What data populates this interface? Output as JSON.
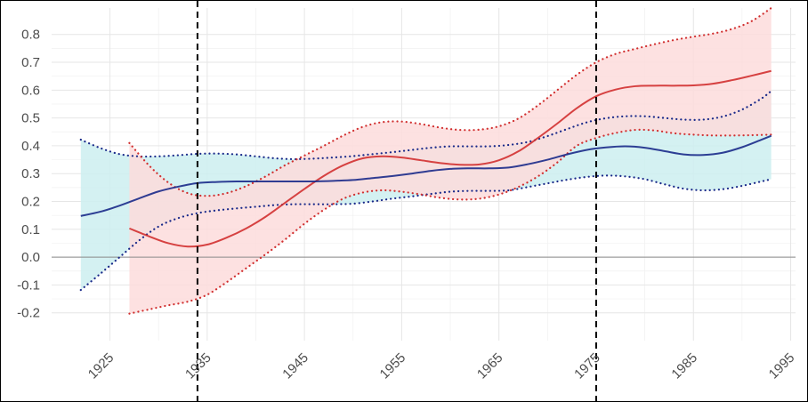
{
  "chart_data": {
    "type": "line",
    "title": "",
    "xlabel": "",
    "ylabel": "",
    "xlim": [
      1919,
      1995.5
    ],
    "ylim": [
      -0.3,
      0.895
    ],
    "x_ticks": [
      1925,
      1935,
      1945,
      1955,
      1965,
      1975,
      1985,
      1995
    ],
    "y_ticks": [
      -0.2,
      -0.1,
      0.0,
      0.1,
      0.2,
      0.3,
      0.4,
      0.5,
      0.6,
      0.7,
      0.8
    ],
    "y_tick_labels": [
      "-0.2",
      "-0.1",
      "0.0",
      "0.1",
      "0.2",
      "0.3",
      "0.4",
      "0.5",
      "0.6",
      "0.7",
      "0.8"
    ],
    "zero_line": 0,
    "vertical_reference_lines": [
      1934,
      1975
    ],
    "series": [
      {
        "name": "blue",
        "line_color": "#1a2a8a",
        "band_color": "#cdeff0",
        "x": [
          1922,
          1924,
          1926,
          1928,
          1930,
          1932,
          1934,
          1936,
          1938,
          1940,
          1942,
          1944,
          1946,
          1948,
          1950,
          1952,
          1954,
          1956,
          1958,
          1960,
          1962,
          1964,
          1966,
          1968,
          1970,
          1972,
          1974,
          1976,
          1978,
          1980,
          1982,
          1984,
          1986,
          1988,
          1990,
          1992,
          1993
        ],
        "fit": [
          0.148,
          0.163,
          0.185,
          0.211,
          0.236,
          0.253,
          0.266,
          0.27,
          0.272,
          0.272,
          0.272,
          0.272,
          0.272,
          0.274,
          0.277,
          0.284,
          0.291,
          0.3,
          0.31,
          0.317,
          0.319,
          0.319,
          0.322,
          0.334,
          0.35,
          0.369,
          0.385,
          0.394,
          0.398,
          0.393,
          0.381,
          0.369,
          0.367,
          0.375,
          0.395,
          0.422,
          0.436
        ],
        "upper": [
          0.422,
          0.392,
          0.37,
          0.362,
          0.362,
          0.366,
          0.371,
          0.372,
          0.369,
          0.362,
          0.355,
          0.352,
          0.354,
          0.358,
          0.363,
          0.37,
          0.377,
          0.385,
          0.393,
          0.398,
          0.398,
          0.398,
          0.403,
          0.414,
          0.435,
          0.46,
          0.484,
          0.499,
          0.506,
          0.506,
          0.5,
          0.494,
          0.494,
          0.505,
          0.53,
          0.57,
          0.597
        ],
        "lower": [
          -0.118,
          -0.06,
          0.0,
          0.06,
          0.11,
          0.14,
          0.158,
          0.168,
          0.175,
          0.181,
          0.187,
          0.19,
          0.19,
          0.19,
          0.192,
          0.2,
          0.21,
          0.218,
          0.227,
          0.235,
          0.238,
          0.238,
          0.24,
          0.252,
          0.265,
          0.278,
          0.288,
          0.293,
          0.29,
          0.28,
          0.262,
          0.246,
          0.24,
          0.244,
          0.256,
          0.272,
          0.28
        ]
      },
      {
        "name": "red",
        "line_color": "#d13030",
        "band_color": "#fddcdc",
        "x": [
          1927,
          1929,
          1931,
          1933,
          1935,
          1937,
          1939,
          1941,
          1943,
          1945,
          1947,
          1949,
          1951,
          1953,
          1955,
          1957,
          1959,
          1961,
          1963,
          1965,
          1967,
          1969,
          1971,
          1973,
          1975,
          1977,
          1979,
          1981,
          1983,
          1985,
          1987,
          1989,
          1991,
          1993
        ],
        "fit": [
          0.103,
          0.075,
          0.05,
          0.038,
          0.045,
          0.07,
          0.103,
          0.145,
          0.195,
          0.245,
          0.292,
          0.33,
          0.355,
          0.362,
          0.358,
          0.348,
          0.338,
          0.332,
          0.333,
          0.348,
          0.38,
          0.428,
          0.48,
          0.535,
          0.578,
          0.602,
          0.614,
          0.616,
          0.616,
          0.617,
          0.623,
          0.636,
          0.652,
          0.669
        ],
        "upper": [
          0.41,
          0.33,
          0.268,
          0.23,
          0.22,
          0.23,
          0.255,
          0.29,
          0.33,
          0.365,
          0.4,
          0.437,
          0.468,
          0.485,
          0.487,
          0.478,
          0.465,
          0.457,
          0.458,
          0.47,
          0.498,
          0.545,
          0.6,
          0.655,
          0.7,
          0.73,
          0.748,
          0.765,
          0.78,
          0.792,
          0.803,
          0.82,
          0.848,
          0.895
        ],
        "lower": [
          -0.203,
          -0.188,
          -0.173,
          -0.16,
          -0.135,
          -0.09,
          -0.04,
          0.01,
          0.063,
          0.12,
          0.17,
          0.21,
          0.232,
          0.24,
          0.235,
          0.225,
          0.213,
          0.207,
          0.21,
          0.225,
          0.252,
          0.29,
          0.34,
          0.4,
          0.428,
          0.446,
          0.457,
          0.455,
          0.445,
          0.44,
          0.437,
          0.437,
          0.438,
          0.44
        ]
      }
    ]
  }
}
